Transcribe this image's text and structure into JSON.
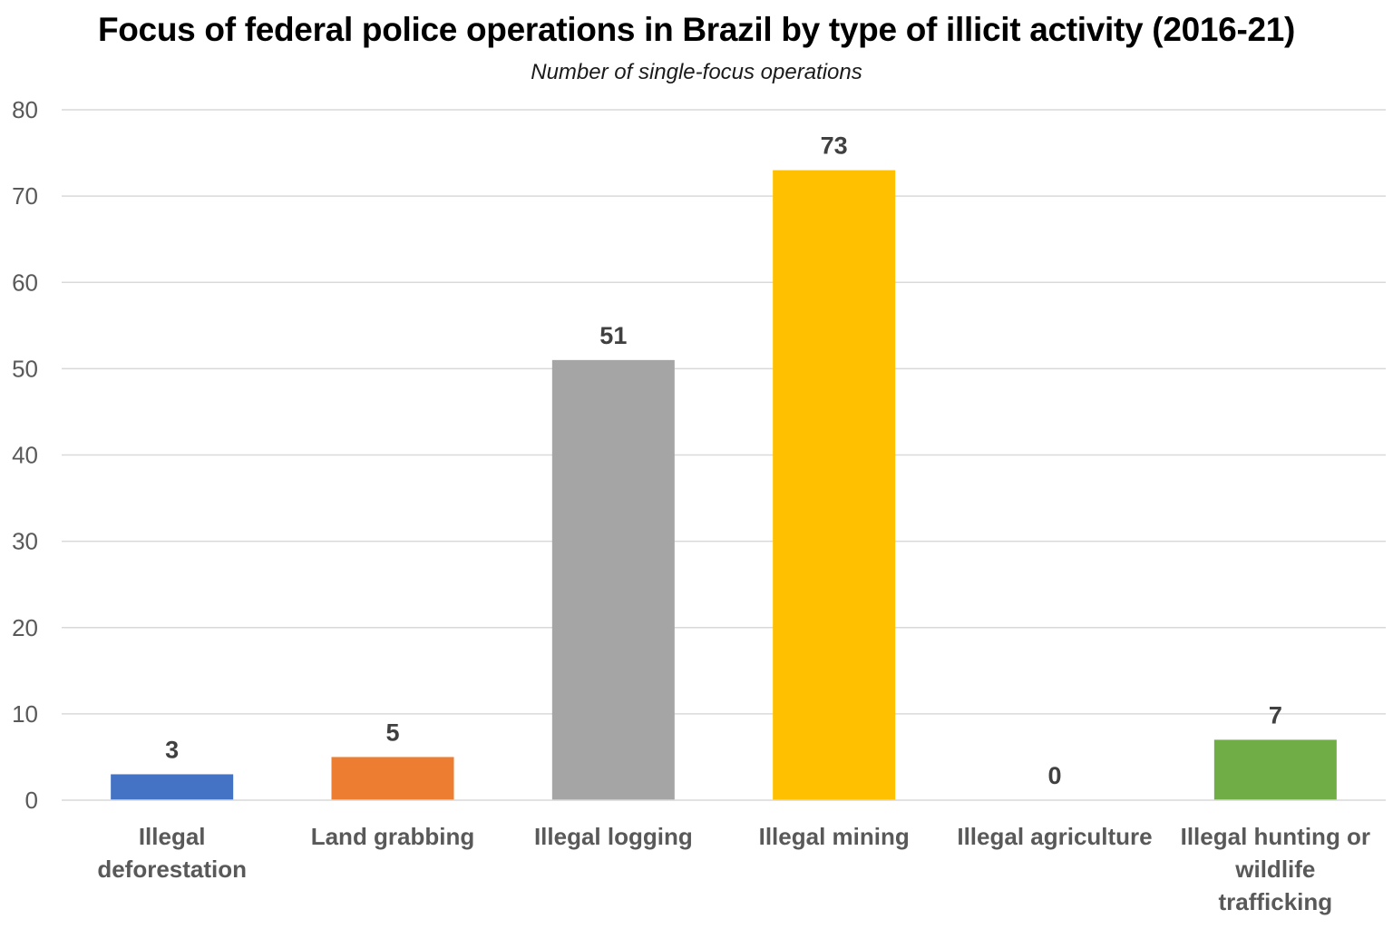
{
  "chart_data": {
    "type": "bar",
    "title": "Focus of federal police operations in Brazil by type of illicit activity (2016-21)",
    "subtitle": "Number of single-focus operations",
    "categories": [
      "Illegal deforestation",
      "Land grabbing",
      "Illegal logging",
      "Illegal mining",
      "Illegal agriculture",
      "Illegal hunting or wildlife trafficking"
    ],
    "category_lines": [
      [
        "Illegal",
        "deforestation"
      ],
      [
        "Land grabbing"
      ],
      [
        "Illegal logging"
      ],
      [
        "Illegal mining"
      ],
      [
        "Illegal agriculture"
      ],
      [
        "Illegal hunting or",
        "wildlife",
        "trafficking"
      ]
    ],
    "values": [
      3,
      5,
      51,
      73,
      0,
      7
    ],
    "data_labels": [
      "3",
      "5",
      "51",
      "73",
      "0",
      "7"
    ],
    "colors": [
      "#4472C4",
      "#ED7D31",
      "#A5A5A5",
      "#FFC000",
      "#5B9BD5",
      "#70AD47"
    ],
    "xlabel": "",
    "ylabel": "",
    "ylim": [
      0,
      80
    ],
    "yticks": [
      0,
      10,
      20,
      30,
      40,
      50,
      60,
      70,
      80
    ],
    "grid": true,
    "legend": "none"
  }
}
